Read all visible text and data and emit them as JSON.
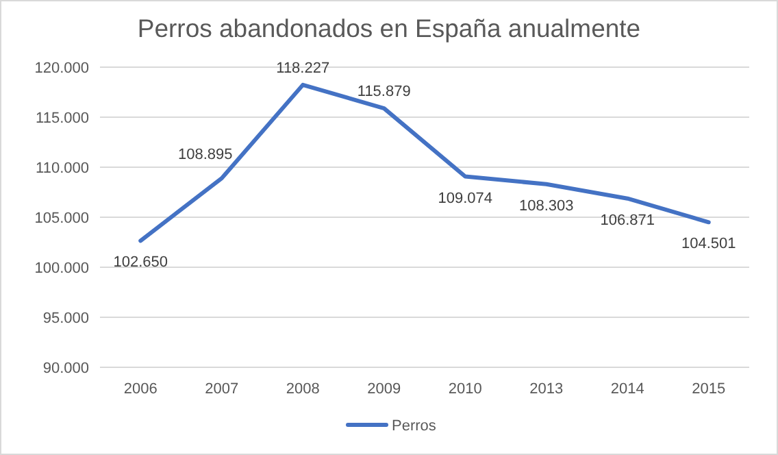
{
  "chart_data": {
    "type": "line",
    "title": "Perros abandonados en España anualmente",
    "categories": [
      "2006",
      "2007",
      "2008",
      "2009",
      "2010",
      "2013",
      "2014",
      "2015"
    ],
    "series": [
      {
        "name": "Perros",
        "color": "#4472c4",
        "values": [
          102650,
          108895,
          118227,
          115879,
          109074,
          108303,
          106871,
          104501
        ],
        "value_labels": [
          "102.650",
          "108.895",
          "118.227",
          "115.879",
          "109.074",
          "108.303",
          "106.871",
          "104.501"
        ]
      }
    ],
    "ylim": [
      90000,
      120000
    ],
    "yticks": [
      {
        "value": 90000,
        "label": "90.000"
      },
      {
        "value": 95000,
        "label": "95.000"
      },
      {
        "value": 100000,
        "label": "100.000"
      },
      {
        "value": 105000,
        "label": "105.000"
      },
      {
        "value": 110000,
        "label": "110.000"
      },
      {
        "value": 115000,
        "label": "115.000"
      },
      {
        "value": 120000,
        "label": "120.000"
      }
    ],
    "grid": "y",
    "legend": "bottom",
    "marker": "none",
    "line_style": "solid"
  }
}
